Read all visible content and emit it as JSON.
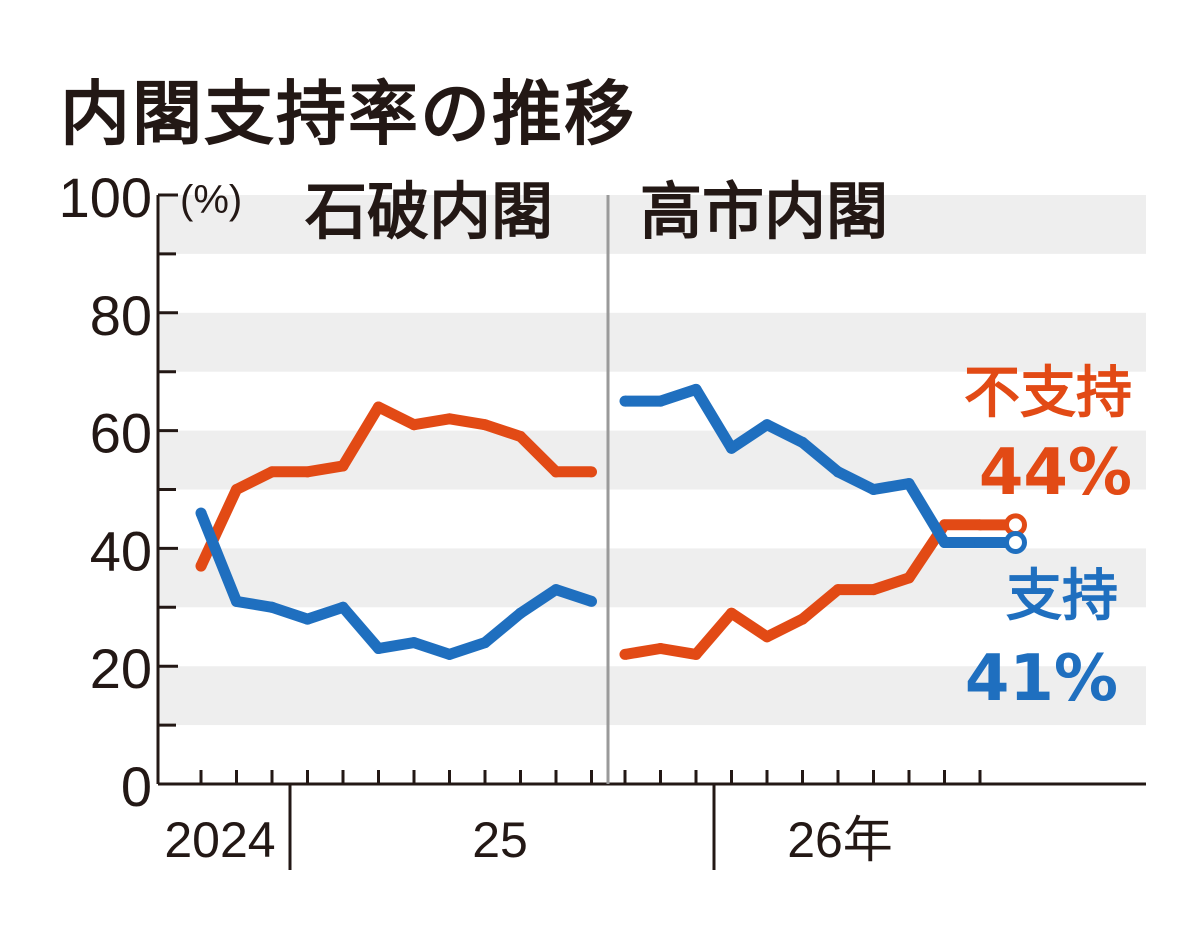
{
  "title": "内閣支持率の推移",
  "chart_data": {
    "type": "line",
    "title": "内閣支持率の推移",
    "y_unit": "(%)",
    "ylim": [
      0,
      100
    ],
    "y_ticks": [
      "100",
      "80",
      "60",
      "40",
      "20",
      "0"
    ],
    "grid": "alternating horizontal bands",
    "x_labels": [
      "2024",
      "25",
      "26年"
    ],
    "eras": [
      {
        "label": "石破内閣"
      },
      {
        "label": "高市内閣"
      }
    ],
    "series": [
      {
        "name": "不支持",
        "color": "#e24a15",
        "segments": [
          [
            37,
            50,
            53,
            53,
            54,
            64,
            61,
            62,
            61,
            59,
            53,
            53
          ],
          [
            22,
            23,
            22,
            29,
            25,
            28,
            33,
            33,
            35,
            44,
            44
          ]
        ]
      },
      {
        "name": "支持",
        "color": "#1f6fbf",
        "segments": [
          [
            46,
            31,
            30,
            28,
            30,
            23,
            24,
            22,
            24,
            29,
            33,
            31
          ],
          [
            65,
            65,
            67,
            57,
            61,
            58,
            53,
            50,
            51,
            41,
            41
          ]
        ]
      }
    ],
    "callouts": [
      {
        "label": "不支持",
        "value": "44%",
        "color": "#e24a15"
      },
      {
        "label": "支持",
        "value": "41%",
        "color": "#1f6fbf"
      }
    ]
  }
}
